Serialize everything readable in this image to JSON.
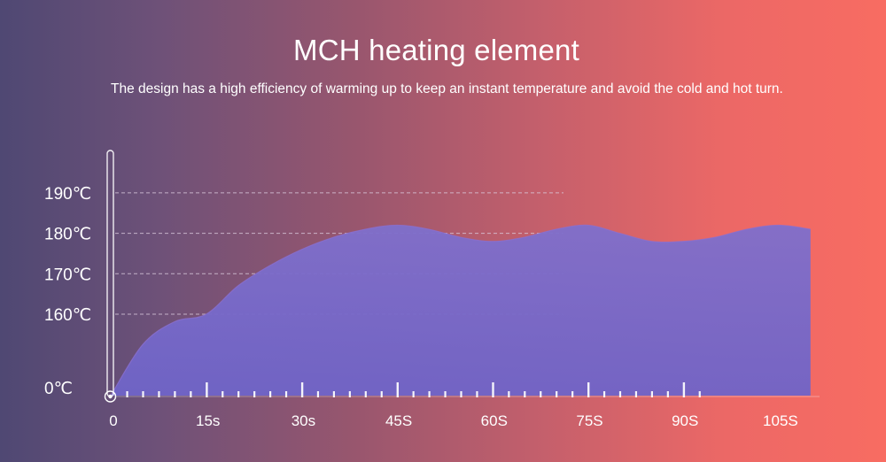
{
  "header": {
    "title": "MCH heating element",
    "subtitle": "The design has a high efficiency of warming up to keep an instant temperature and avoid the cold and hot turn."
  },
  "colors": {
    "fill_top": "#7f6fcc",
    "fill_bottom": "#6f64c8",
    "grid": "#d9c9dc"
  },
  "chart_data": {
    "type": "area",
    "title": "MCH heating element",
    "x_unit": "seconds",
    "y_unit": "°C",
    "y_tick_labels": [
      "0℃",
      "160℃",
      "170℃",
      "180℃",
      "190℃"
    ],
    "x_tick_labels": [
      "0",
      "15s",
      "30s",
      "45S",
      "60S",
      "75S",
      "90S",
      "105S"
    ],
    "grid": "dashed horizontal lines at 160, 170, 180, 190",
    "series": [
      {
        "x": [
          0,
          5,
          10,
          15,
          20,
          25,
          30,
          35,
          40,
          45,
          50,
          55,
          60,
          65,
          70,
          75,
          80,
          85,
          90,
          95,
          100,
          105,
          110
        ],
        "y": [
          0,
          100,
          145,
          160,
          167,
          172,
          176,
          179,
          181,
          182,
          181,
          179,
          178,
          179,
          181,
          182,
          180,
          178,
          178,
          179,
          181,
          182,
          181
        ]
      }
    ]
  }
}
